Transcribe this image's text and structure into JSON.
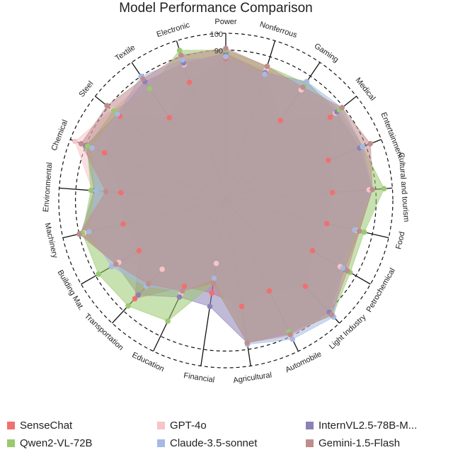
{
  "chart_data": {
    "type": "radar",
    "title": "Model Performance Comparison",
    "rlim": [
      0,
      100
    ],
    "r_tick_labels": [
      "90",
      "100"
    ],
    "axes": [
      "Power",
      "Nonferrous",
      "Gaming",
      "Medical",
      "Entertainment",
      "Cultural and tourism",
      "Food",
      "Petrochemical",
      "Light Industry",
      "Automobile",
      "Agricultural",
      "Financial",
      "Education",
      "Transportation",
      "Building Mat.",
      "Machinery",
      "Environmental",
      "Chemical",
      "Steel",
      "Textile",
      "Electronic"
    ],
    "series": [
      {
        "name": "SenseChat",
        "color": "#f0706f",
        "values": [
          85,
          80,
          58,
          80,
          66,
          64,
          62,
          60,
          70,
          60,
          64,
          56,
          57,
          80,
          60,
          63,
          63,
          78,
          81,
          60,
          74
        ]
      },
      {
        "name": "GPT-4o",
        "color": "#f6c5c8",
        "values": [
          86,
          82,
          80,
          84,
          88,
          86,
          80,
          79,
          91,
          90,
          86,
          38,
          62,
          56,
          74,
          87,
          80,
          97,
          87,
          86,
          85
        ]
      },
      {
        "name": "InternVL2.5-78B-M...",
        "color": "#8b82b8",
        "values": [
          88,
          80,
          86,
          85,
          86,
          88,
          82,
          82,
          91,
          88,
          86,
          64,
          64,
          77,
          76,
          89,
          79,
          90,
          83,
          86,
          86
        ]
      },
      {
        "name": "Qwen2-VL-72B",
        "color": "#9ac970",
        "values": [
          90,
          84,
          85,
          87,
          88,
          95,
          85,
          86,
          94,
          87,
          86,
          50,
          80,
          86,
          88,
          88,
          81,
          89,
          86,
          81,
          94
        ]
      },
      {
        "name": "Claude-3.5-sonnet",
        "color": "#a6b9e2",
        "values": [
          86,
          79,
          86,
          89,
          88,
          88,
          79,
          81,
          95,
          92,
          87,
          47,
          60,
          70,
          79,
          84,
          78,
          86,
          83,
          90,
          88
        ]
      },
      {
        "name": "Gemini-1.5-Flash",
        "color": "#bf8d8d",
        "values": [
          91,
          84,
          82,
          89,
          93,
          88,
          82,
          84,
          93,
          89,
          86,
          50,
          60,
          68,
          76,
          90,
          72,
          93,
          91,
          88,
          91
        ]
      }
    ]
  }
}
